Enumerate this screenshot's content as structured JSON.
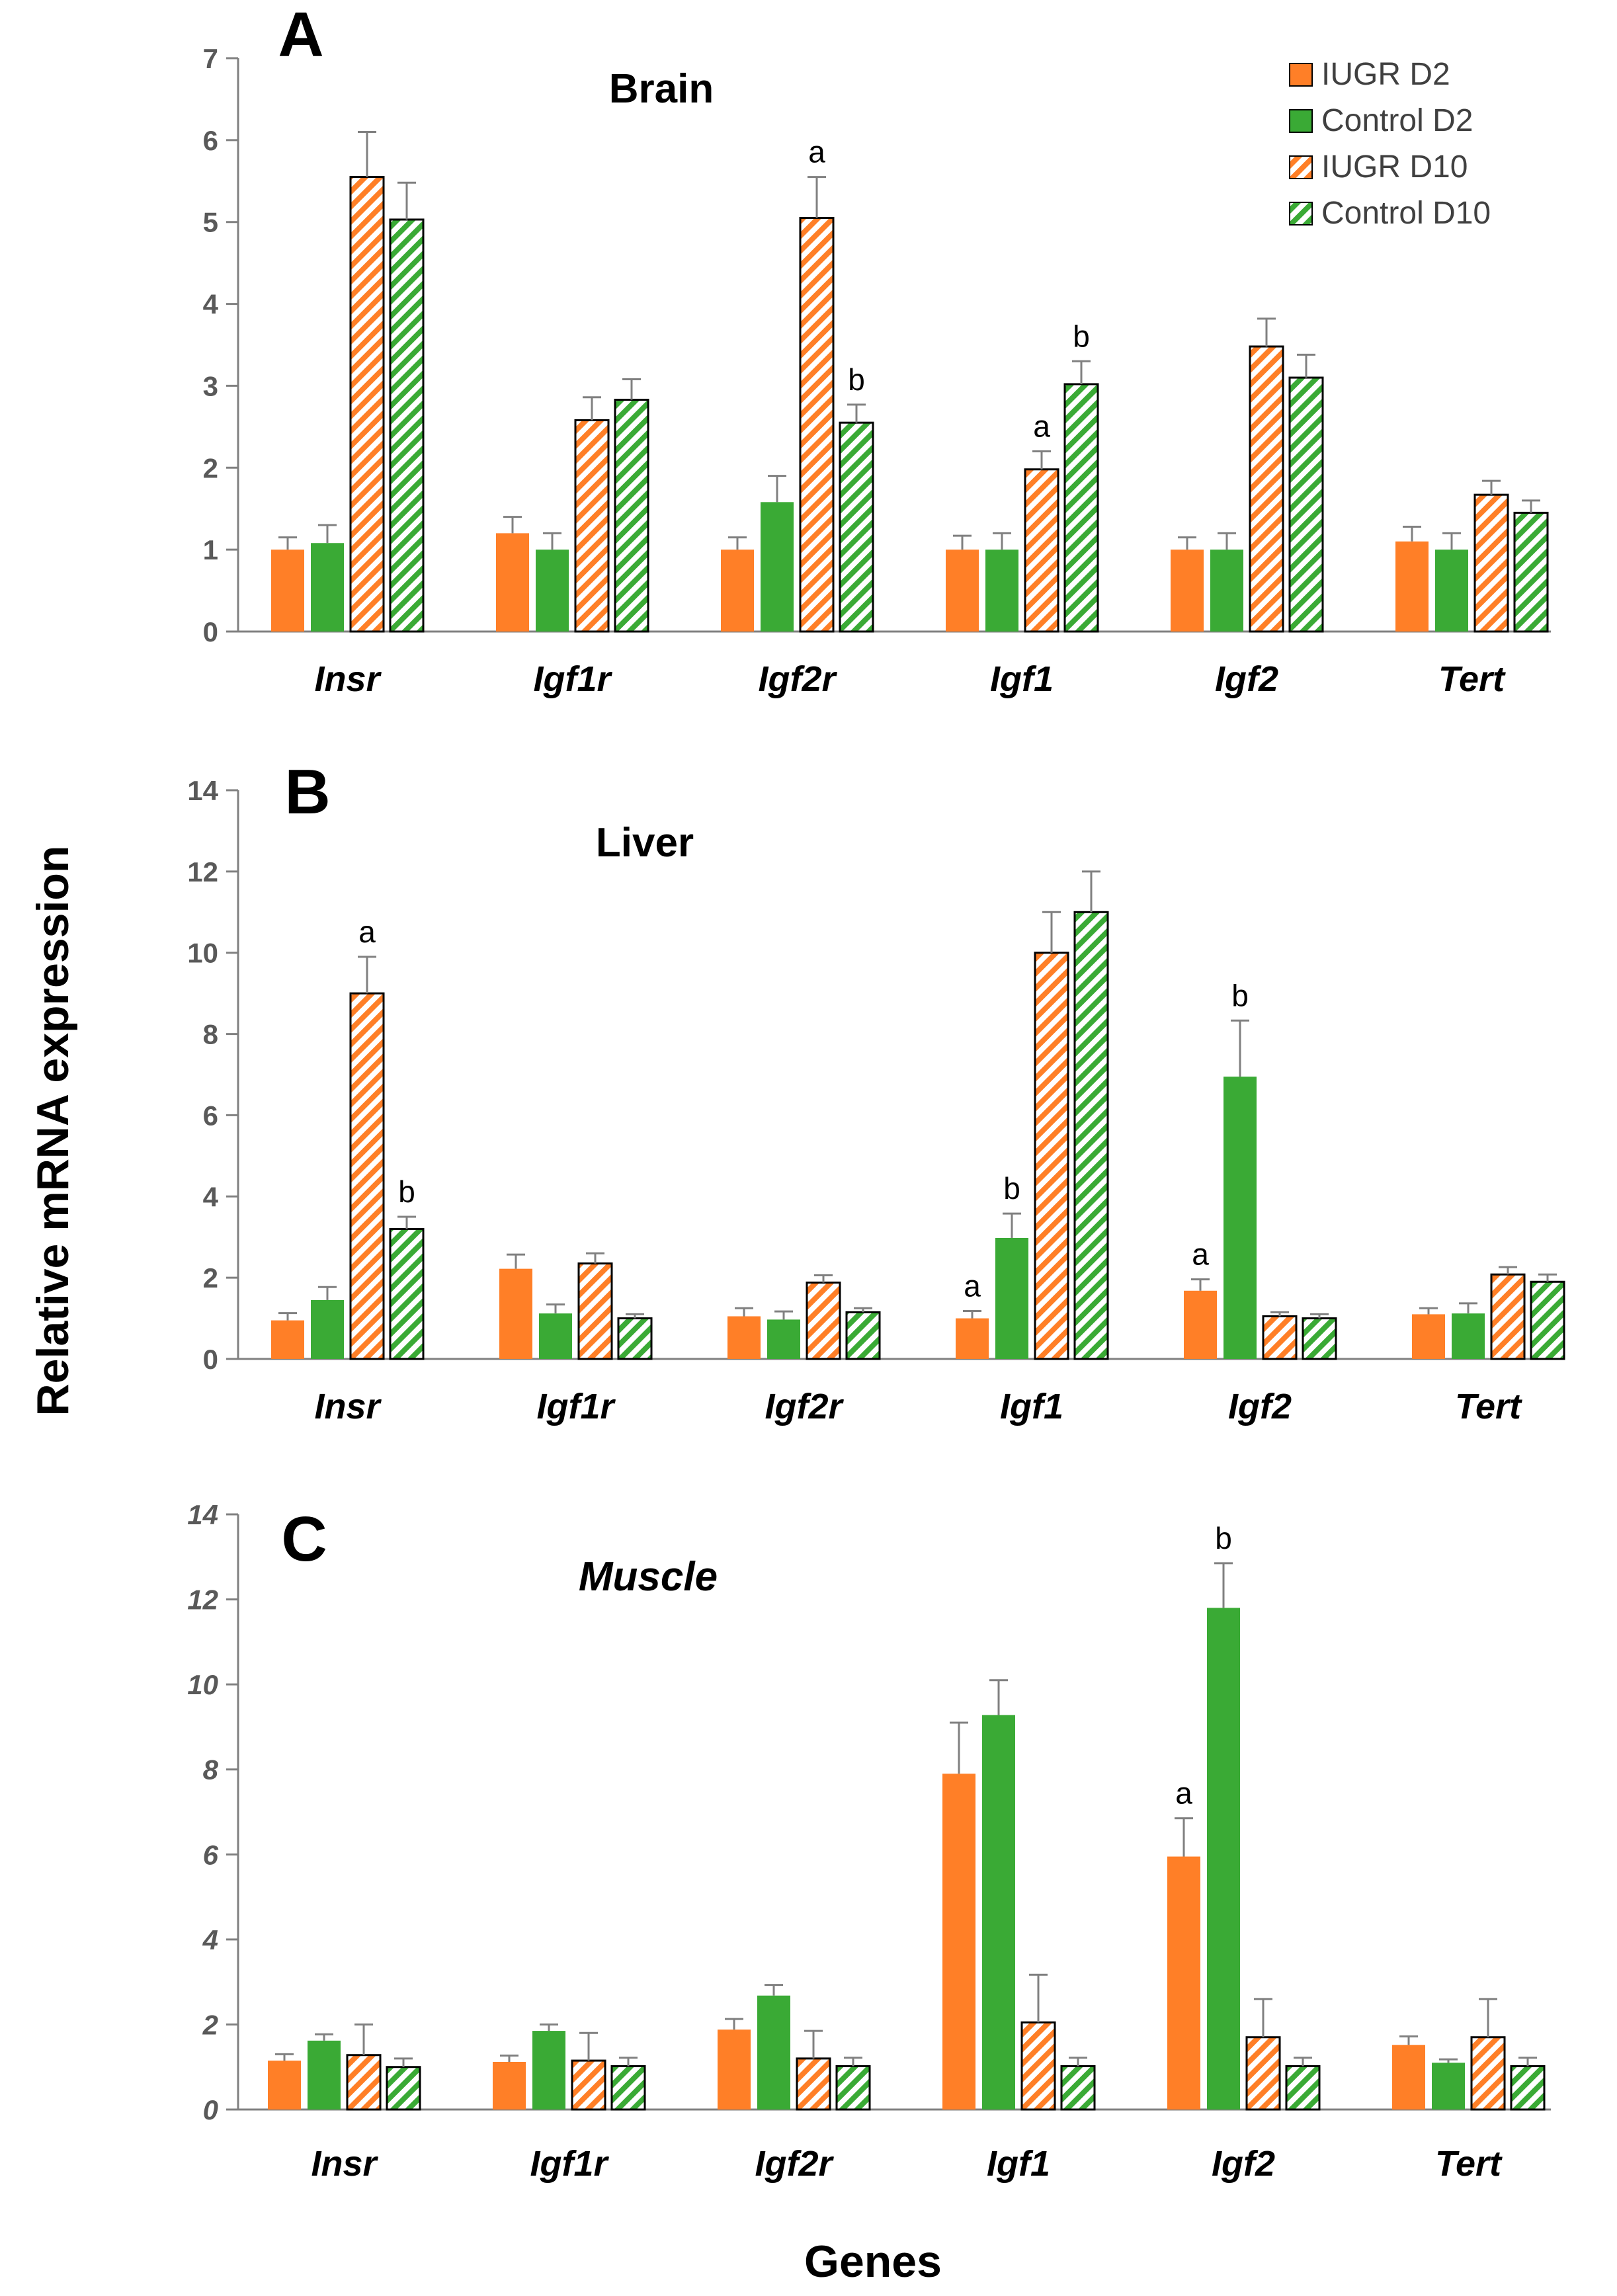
{
  "figure": {
    "ylabel": "Relative mRNA expression",
    "xlabel": "Genes",
    "legend": [
      {
        "name": "IUGR D2",
        "color": "#FF7F27",
        "pattern": "solid"
      },
      {
        "name": "Control D2",
        "color": "#3AAA35",
        "pattern": "solid"
      },
      {
        "name": "IUGR D10",
        "color": "#FF7F27",
        "pattern": "hatched"
      },
      {
        "name": "Control D10",
        "color": "#3AAA35",
        "pattern": "hatched"
      }
    ]
  },
  "chart_data": [
    {
      "type": "bar",
      "panel_letter": "A",
      "title": "Brain",
      "title_italic": false,
      "categories": [
        "Insr",
        "Igf1r",
        "Igf2r",
        "Igf1",
        "Igf2",
        "Tert"
      ],
      "ylim": [
        0,
        7
      ],
      "yticks": [
        0,
        1,
        2,
        3,
        4,
        5,
        6,
        7
      ],
      "ytick_labels": [
        "0",
        "1",
        "2",
        "3",
        "4",
        "5",
        "6",
        "7"
      ],
      "legend_position": "top-right",
      "series": [
        {
          "name": "IUGR D2",
          "values": [
            1.0,
            1.2,
            1.0,
            1.0,
            1.0,
            1.1
          ],
          "errors": [
            0.15,
            0.2,
            0.15,
            0.17,
            0.15,
            0.18
          ],
          "labels": [
            "",
            "",
            "",
            "",
            "",
            ""
          ]
        },
        {
          "name": "Control D2",
          "values": [
            1.08,
            1.0,
            1.58,
            1.0,
            1.0,
            1.0
          ],
          "errors": [
            0.22,
            0.2,
            0.32,
            0.2,
            0.2,
            0.2
          ],
          "labels": [
            "",
            "",
            "",
            "",
            "",
            ""
          ]
        },
        {
          "name": "IUGR D10",
          "values": [
            5.55,
            2.58,
            5.05,
            1.98,
            3.48,
            1.67
          ],
          "errors": [
            0.55,
            0.28,
            0.5,
            0.22,
            0.34,
            0.17
          ],
          "labels": [
            "",
            "",
            "a",
            "a",
            "",
            ""
          ]
        },
        {
          "name": "Control D10",
          "values": [
            5.03,
            2.83,
            2.55,
            3.02,
            3.1,
            1.45
          ],
          "errors": [
            0.45,
            0.25,
            0.22,
            0.28,
            0.28,
            0.15
          ],
          "labels": [
            "",
            "",
            "b",
            "b",
            "",
            ""
          ]
        }
      ]
    },
    {
      "type": "bar",
      "panel_letter": "B",
      "title": "Liver",
      "title_italic": false,
      "categories": [
        "Insr",
        "Igf1r",
        "Igf2r",
        "Igf1",
        "Igf2",
        "Tert"
      ],
      "ylim": [
        0,
        14
      ],
      "yticks": [
        0,
        2,
        4,
        6,
        8,
        10,
        12,
        14
      ],
      "ytick_labels": [
        "0",
        "2",
        "4",
        "6",
        "8",
        "10",
        "12",
        "14"
      ],
      "legend_position": "none",
      "series": [
        {
          "name": "IUGR D2",
          "values": [
            0.95,
            2.22,
            1.05,
            1.0,
            1.68,
            1.1
          ],
          "errors": [
            0.18,
            0.35,
            0.2,
            0.18,
            0.28,
            0.15
          ],
          "labels": [
            "",
            "",
            "",
            "a",
            "a",
            ""
          ]
        },
        {
          "name": "Control D2",
          "values": [
            1.45,
            1.12,
            0.97,
            2.98,
            6.95,
            1.12
          ],
          "errors": [
            0.32,
            0.22,
            0.2,
            0.6,
            1.38,
            0.25
          ],
          "labels": [
            "",
            "",
            "",
            "b",
            "b",
            ""
          ]
        },
        {
          "name": "IUGR D10",
          "values": [
            9.0,
            2.35,
            1.88,
            10.0,
            1.05,
            2.08
          ],
          "errors": [
            0.9,
            0.25,
            0.18,
            1.0,
            0.1,
            0.18
          ],
          "labels": [
            "a",
            "",
            "",
            "",
            "",
            ""
          ]
        },
        {
          "name": "Control D10",
          "values": [
            3.2,
            1.0,
            1.15,
            11.0,
            1.0,
            1.9
          ],
          "errors": [
            0.3,
            0.1,
            0.1,
            1.0,
            0.1,
            0.18
          ],
          "labels": [
            "b",
            "",
            "",
            "",
            "",
            ""
          ]
        }
      ]
    },
    {
      "type": "bar",
      "panel_letter": "C",
      "title": "Muscle",
      "title_italic": true,
      "categories": [
        "Insr",
        "Igf1r",
        "Igf2r",
        "Igf1",
        "Igf2",
        "Tert"
      ],
      "ylim": [
        0,
        14
      ],
      "yticks": [
        0,
        2,
        4,
        6,
        8,
        10,
        12,
        14
      ],
      "ytick_labels": [
        "0",
        "2",
        "4",
        "6",
        "8",
        "10",
        "12",
        "14"
      ],
      "legend_position": "none",
      "series": [
        {
          "name": "IUGR D2",
          "values": [
            1.15,
            1.12,
            1.88,
            7.9,
            5.95,
            1.52
          ],
          "errors": [
            0.15,
            0.15,
            0.25,
            1.2,
            0.9,
            0.2
          ],
          "labels": [
            "",
            "",
            "",
            "",
            "a",
            ""
          ]
        },
        {
          "name": "Control D2",
          "values": [
            1.62,
            1.85,
            2.68,
            9.28,
            11.8,
            1.1
          ],
          "errors": [
            0.15,
            0.15,
            0.25,
            0.82,
            1.05,
            0.08
          ],
          "labels": [
            "",
            "",
            "",
            "",
            "b",
            ""
          ]
        },
        {
          "name": "IUGR D10",
          "values": [
            1.28,
            1.15,
            1.2,
            2.05,
            1.7,
            1.7
          ],
          "errors": [
            0.72,
            0.65,
            0.65,
            1.12,
            0.9,
            0.9
          ],
          "labels": [
            "",
            "",
            "",
            "",
            "",
            ""
          ]
        },
        {
          "name": "Control D10",
          "values": [
            1.0,
            1.02,
            1.02,
            1.02,
            1.02,
            1.02
          ],
          "errors": [
            0.2,
            0.2,
            0.2,
            0.2,
            0.2,
            0.2
          ],
          "labels": [
            "",
            "",
            "",
            "",
            "",
            ""
          ]
        }
      ]
    }
  ]
}
